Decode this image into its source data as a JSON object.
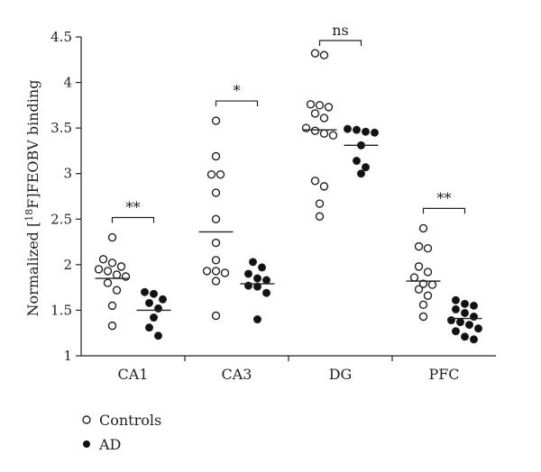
{
  "chart_data": {
    "type": "scatter",
    "ylabel_pre": "Normalized [",
    "ylabel_sup": "18",
    "ylabel_post": "F]FEOBV binding",
    "ylim": [
      1,
      4.5
    ],
    "yticks": [
      "1",
      "1.5",
      "2",
      "2.5",
      "3",
      "3.5",
      "4",
      "4.5"
    ],
    "yticks_values": [
      1,
      1.5,
      2,
      2.5,
      3,
      3.5,
      4,
      4.5
    ],
    "categories": [
      "CA1",
      "CA3",
      "DG",
      "PFC"
    ],
    "series": [
      {
        "name": "Controls",
        "marker": "open-circle",
        "groups": [
          {
            "category": "CA1",
            "mean": 1.85,
            "values": [
              2.3,
              2.06,
              2.02,
              1.98,
              1.95,
              1.93,
              1.89,
              1.87,
              1.8,
              1.72,
              1.55,
              1.33
            ]
          },
          {
            "category": "CA3",
            "mean": 2.36,
            "values": [
              3.58,
              3.19,
              2.99,
              2.99,
              2.79,
              2.5,
              2.24,
              2.05,
              1.93,
              1.93,
              1.91,
              1.82,
              1.44
            ]
          },
          {
            "category": "DG",
            "mean": 3.48,
            "values": [
              4.32,
              4.3,
              3.76,
              3.75,
              3.73,
              3.66,
              3.61,
              3.5,
              3.47,
              3.44,
              3.42,
              2.92,
              2.86,
              2.67,
              2.53
            ]
          },
          {
            "category": "PFC",
            "mean": 1.82,
            "values": [
              2.4,
              2.2,
              2.18,
              1.98,
              1.92,
              1.86,
              1.79,
              1.78,
              1.73,
              1.66,
              1.56,
              1.43
            ]
          }
        ]
      },
      {
        "name": "AD",
        "marker": "filled-circle",
        "groups": [
          {
            "category": "CA1",
            "mean": 1.5,
            "values": [
              1.7,
              1.68,
              1.62,
              1.58,
              1.52,
              1.42,
              1.31,
              1.22
            ]
          },
          {
            "category": "CA3",
            "mean": 1.79,
            "values": [
              2.03,
              1.97,
              1.9,
              1.85,
              1.83,
              1.77,
              1.76,
              1.69,
              1.4
            ]
          },
          {
            "category": "DG",
            "mean": 3.31,
            "values": [
              3.49,
              3.48,
              3.46,
              3.45,
              3.31,
              3.14,
              3.07,
              3.0
            ]
          },
          {
            "category": "PFC",
            "mean": 1.41,
            "values": [
              1.61,
              1.57,
              1.55,
              1.51,
              1.47,
              1.43,
              1.39,
              1.37,
              1.34,
              1.3,
              1.27,
              1.21,
              1.18
            ]
          }
        ]
      }
    ],
    "significance": [
      {
        "category": "CA1",
        "label": "**"
      },
      {
        "category": "CA3",
        "label": "*"
      },
      {
        "category": "DG",
        "label": "ns"
      },
      {
        "category": "PFC",
        "label": "**"
      }
    ],
    "legend": [
      {
        "label": "Controls",
        "marker": "open-circle"
      },
      {
        "label": "AD",
        "marker": "filled-circle"
      }
    ],
    "grid": false,
    "legend_position": "bottom-left"
  }
}
